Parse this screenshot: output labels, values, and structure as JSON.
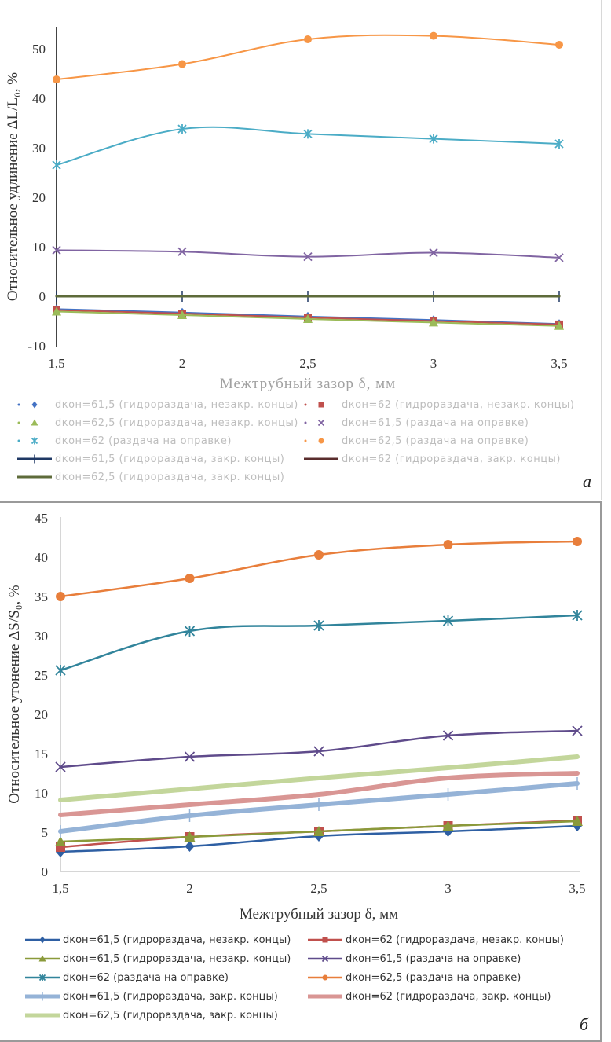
{
  "chart_data": [
    {
      "id": "a",
      "type": "line",
      "panel_label": "а",
      "title": "",
      "xlabel": "Межтрубный зазор δ, мм",
      "ylabel": "Относительное удлинение ΔL/L₀, %",
      "x": [
        1.5,
        2,
        2.5,
        3,
        3.5
      ],
      "x_tick_labels": [
        "1,5",
        "2",
        "2,5",
        "3",
        "3,5"
      ],
      "y_ticks": [
        -10,
        0,
        10,
        20,
        30,
        40,
        50
      ],
      "ylim": [
        -10,
        55
      ],
      "grid": false,
      "legend_position": "bottom",
      "series": [
        {
          "name": "dкон=61,5 (гидрораздача, незакр. концы)",
          "color": "#4472c4",
          "marker": "diamond",
          "width": 2,
          "values": [
            -2.6,
            -3.3,
            -4.1,
            -4.8,
            -5.6
          ]
        },
        {
          "name": "dкон=62 (гидрораздача, незакр. концы)",
          "color": "#c0504d",
          "marker": "square",
          "width": 2,
          "values": [
            -2.8,
            -3.5,
            -4.3,
            -5.0,
            -5.7
          ]
        },
        {
          "name": "dкон=62,5 (гидрораздача, незакр. концы)",
          "color": "#9bbb59",
          "marker": "triangle",
          "width": 2,
          "values": [
            -3.1,
            -3.8,
            -4.6,
            -5.3,
            -6.0
          ]
        },
        {
          "name": "dкон=61,5 (раздача на оправке)",
          "color": "#8064a2",
          "marker": "x",
          "width": 2,
          "values": [
            9.3,
            9.0,
            8.0,
            8.8,
            7.8
          ]
        },
        {
          "name": "dкон=62 (раздача на оправке)",
          "color": "#4bacc6",
          "marker": "star",
          "width": 2,
          "values": [
            26.5,
            33.8,
            32.8,
            31.8,
            30.8
          ]
        },
        {
          "name": "dкон=62,5 (раздача на оправке)",
          "color": "#f79646",
          "marker": "circle",
          "width": 2,
          "values": [
            43.8,
            46.9,
            51.9,
            52.6,
            50.8
          ]
        },
        {
          "name": "dкон=61,5 (гидрораздача, закр. концы)",
          "color": "#1f3864",
          "marker": "plus",
          "width": 3,
          "values": [
            0,
            0,
            0,
            0,
            0
          ]
        },
        {
          "name": "dкон=62 (гидрораздача, закр. концы)",
          "color": "#5a2d2d",
          "marker": "none",
          "width": 3,
          "values": [
            0,
            0,
            0,
            0,
            0
          ]
        },
        {
          "name": "dкон=62,5 (гидрораздача, закр. концы)",
          "color": "#5e6b3a",
          "marker": "none",
          "width": 3,
          "values": [
            0,
            0,
            0,
            0,
            0
          ]
        }
      ]
    },
    {
      "id": "b",
      "type": "line",
      "panel_label": "б",
      "title": "",
      "xlabel": "Межтрубный зазор δ, мм",
      "ylabel": "Относительное утонение ΔS/S₀, %",
      "x": [
        1.5,
        2,
        2.5,
        3,
        3.5
      ],
      "x_tick_labels": [
        "1,5",
        "2",
        "2,5",
        "3",
        "3,5"
      ],
      "y_ticks": [
        0,
        5,
        10,
        15,
        20,
        25,
        30,
        35,
        40,
        45
      ],
      "ylim": [
        0,
        45
      ],
      "grid": false,
      "legend_position": "bottom",
      "series": [
        {
          "name": "dкон=61,5 (гидрораздача, незакр. концы)",
          "color": "#2e5fa3",
          "marker": "diamond",
          "width": 2.5,
          "values": [
            2.5,
            3.2,
            4.5,
            5.1,
            5.8
          ]
        },
        {
          "name": "dкон=62 (гидрораздача, незакр. концы)",
          "color": "#c0504d",
          "marker": "square",
          "width": 2.5,
          "values": [
            3.1,
            4.4,
            5.1,
            5.8,
            6.5
          ]
        },
        {
          "name": "dкон=61,5 (гидрораздача, незакр. концы)",
          "color": "#8a9a3a",
          "marker": "triangle",
          "width": 2.5,
          "values": [
            3.8,
            4.4,
            5.1,
            5.8,
            6.4
          ]
        },
        {
          "name": "dкон=61,5 (раздача на оправке)",
          "color": "#5f4b8b",
          "marker": "x",
          "width": 2.5,
          "values": [
            13.3,
            14.6,
            15.3,
            17.3,
            17.9
          ]
        },
        {
          "name": "dкон=62 (раздача на оправке)",
          "color": "#31849b",
          "marker": "star",
          "width": 2.5,
          "values": [
            25.6,
            30.6,
            31.3,
            31.9,
            32.6
          ]
        },
        {
          "name": "dкон=62,5 (раздача на оправке)",
          "color": "#e87e3b",
          "marker": "circle",
          "width": 2.5,
          "values": [
            35.0,
            37.3,
            40.3,
            41.6,
            42.0
          ]
        },
        {
          "name": "dкон=61,5 (гидрораздача, закр. концы)",
          "color": "#95b3d7",
          "marker": "plus",
          "width": 6,
          "values": [
            5.1,
            7.1,
            8.5,
            9.8,
            11.2
          ]
        },
        {
          "name": "dкон=62 (гидрораздача, закр. концы)",
          "color": "#d99694",
          "marker": "none",
          "width": 6,
          "values": [
            7.2,
            8.5,
            9.8,
            11.9,
            12.5
          ]
        },
        {
          "name": "dкон=62,5 (гидрораздача, закр. концы)",
          "color": "#c3d69b",
          "marker": "none",
          "width": 6,
          "values": [
            9.1,
            10.5,
            11.9,
            13.2,
            14.6
          ]
        }
      ]
    }
  ]
}
